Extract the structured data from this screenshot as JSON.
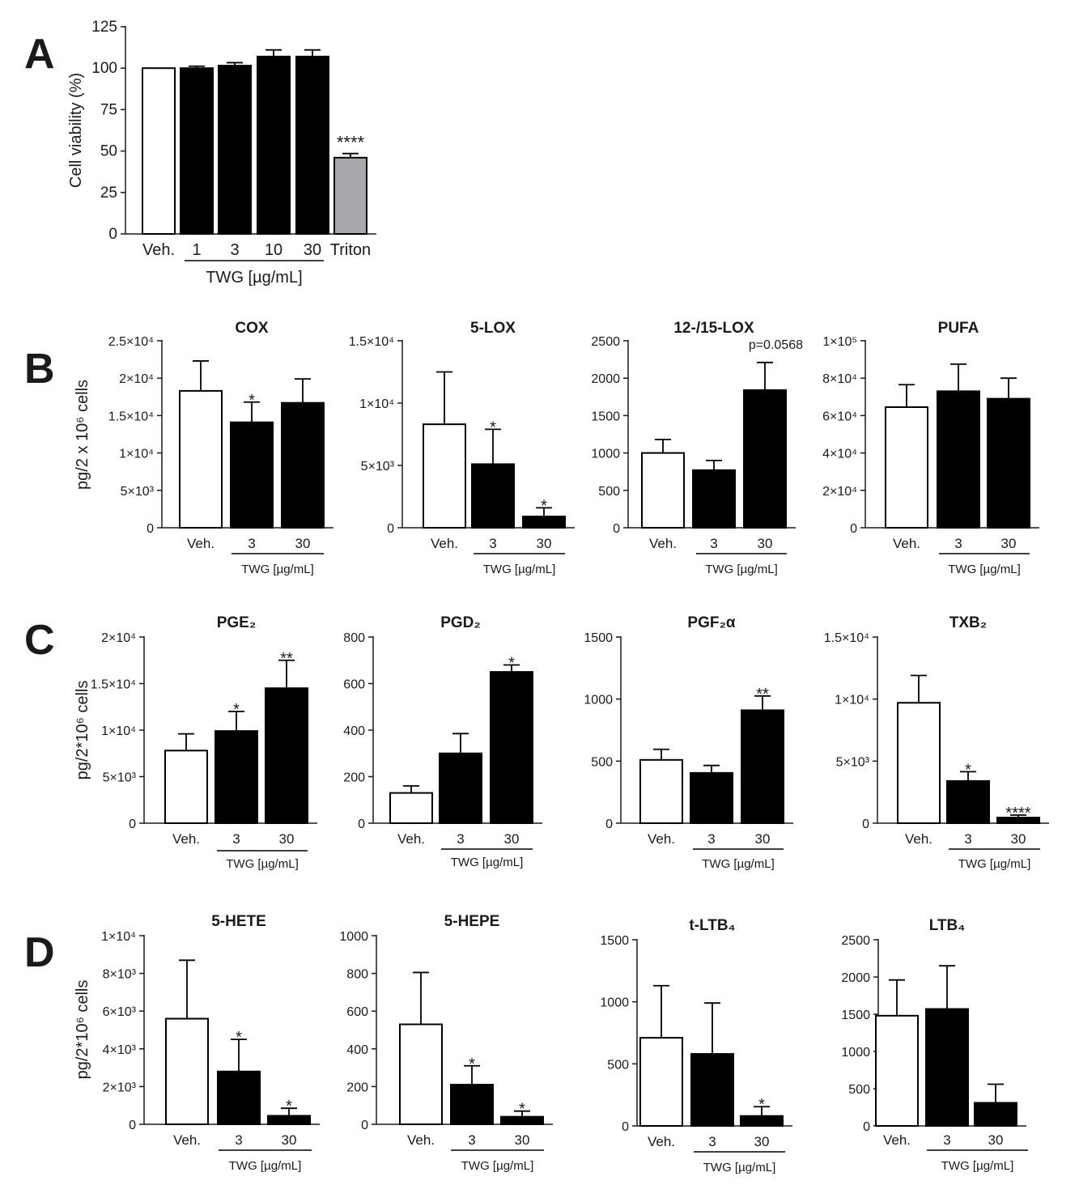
{
  "panels": {
    "A": "A",
    "B": "B",
    "C": "C",
    "D": "D"
  },
  "chart_data": [
    {
      "id": "A",
      "type": "bar",
      "title": "",
      "ylabel": "Cell viability (%)",
      "xlabel": "TWG [µg/mL]",
      "categories": [
        "Veh.",
        "1",
        "3",
        "10",
        "30",
        "Triton"
      ],
      "values": [
        100,
        100,
        101.5,
        107,
        107,
        46
      ],
      "errors": [
        0,
        1.2,
        1.8,
        4,
        4,
        2.5
      ],
      "fills": [
        "white",
        "black",
        "black",
        "black",
        "black",
        "gray"
      ],
      "significance": [
        "",
        "",
        "",
        "",
        "",
        "****"
      ],
      "ylim": [
        0,
        125
      ],
      "yticks": [
        0,
        25,
        50,
        75,
        100,
        125
      ],
      "ytick_labels": [
        "0",
        "25",
        "50",
        "75",
        "100",
        "125"
      ]
    },
    {
      "id": "B1",
      "type": "bar",
      "title": "COX",
      "ylabel": "pg/2 x 10⁶ cells",
      "xlabel": "TWG [µg/mL]",
      "categories": [
        "Veh.",
        "3",
        "30"
      ],
      "values": [
        18300,
        14100,
        16700
      ],
      "errors": [
        4000,
        2700,
        3200
      ],
      "fills": [
        "white",
        "black",
        "black"
      ],
      "significance": [
        "",
        "*",
        ""
      ],
      "ylim": [
        0,
        25000
      ],
      "yticks": [
        0,
        5000,
        10000,
        15000,
        20000,
        25000
      ],
      "ytick_labels": [
        "0",
        "5×10³",
        "1×10⁴",
        "1.5×10⁴",
        "2×10⁴",
        "2.5×10⁴"
      ]
    },
    {
      "id": "B2",
      "type": "bar",
      "title": "5-LOX",
      "xlabel": "TWG [µg/mL]",
      "categories": [
        "Veh.",
        "3",
        "30"
      ],
      "values": [
        8300,
        5100,
        900
      ],
      "errors": [
        4200,
        2800,
        700
      ],
      "fills": [
        "white",
        "black",
        "black"
      ],
      "significance": [
        "",
        "*",
        "*"
      ],
      "ylim": [
        0,
        15000
      ],
      "yticks": [
        0,
        5000,
        10000,
        15000
      ],
      "ytick_labels": [
        "0",
        "5×10³",
        "1×10⁴",
        "1.5×10⁴"
      ]
    },
    {
      "id": "B3",
      "type": "bar",
      "title": "12-/15-LOX",
      "xlabel": "TWG [µg/mL]",
      "categories": [
        "Veh.",
        "3",
        "30"
      ],
      "values": [
        1000,
        770,
        1840
      ],
      "errors": [
        180,
        130,
        370
      ],
      "fills": [
        "white",
        "black",
        "black"
      ],
      "significance": [
        "",
        "",
        ""
      ],
      "annotation": "p=0.0568",
      "ylim": [
        0,
        2500
      ],
      "yticks": [
        0,
        500,
        1000,
        1500,
        2000,
        2500
      ],
      "ytick_labels": [
        "0",
        "500",
        "1000",
        "1500",
        "2000",
        "2500"
      ]
    },
    {
      "id": "B4",
      "type": "bar",
      "title": "PUFA",
      "xlabel": "TWG [µg/mL]",
      "categories": [
        "Veh.",
        "3",
        "30"
      ],
      "values": [
        64500,
        73000,
        69000
      ],
      "errors": [
        12000,
        14500,
        11000
      ],
      "fills": [
        "white",
        "black",
        "black"
      ],
      "significance": [
        "",
        "",
        ""
      ],
      "ylim": [
        0,
        100000
      ],
      "yticks": [
        0,
        20000,
        40000,
        60000,
        80000,
        100000
      ],
      "ytick_labels": [
        "0",
        "2×10⁴",
        "4×10⁴",
        "6×10⁴",
        "8×10⁴",
        "1×10⁵"
      ]
    },
    {
      "id": "C1",
      "type": "bar",
      "title": "PGE₂",
      "ylabel": "pg/2*10⁶ cells",
      "xlabel": "TWG [µg/mL]",
      "categories": [
        "Veh.",
        "3",
        "30"
      ],
      "values": [
        7800,
        9900,
        14500
      ],
      "errors": [
        1800,
        2100,
        3000
      ],
      "fills": [
        "white",
        "black",
        "black"
      ],
      "significance": [
        "",
        "*",
        "**"
      ],
      "ylim": [
        0,
        20000
      ],
      "yticks": [
        0,
        5000,
        10000,
        15000,
        20000
      ],
      "ytick_labels": [
        "0",
        "5×10³",
        "1×10⁴",
        "1.5×10⁴",
        "2×10⁴"
      ]
    },
    {
      "id": "C2",
      "type": "bar",
      "title": "PGD₂",
      "xlabel": "TWG [µg/mL]",
      "categories": [
        "Veh.",
        "3",
        "30"
      ],
      "values": [
        130,
        300,
        650
      ],
      "errors": [
        30,
        85,
        30
      ],
      "fills": [
        "white",
        "black",
        "black"
      ],
      "significance": [
        "",
        "",
        "*"
      ],
      "ylim": [
        0,
        800
      ],
      "yticks": [
        0,
        200,
        400,
        600,
        800
      ],
      "ytick_labels": [
        "0",
        "200",
        "400",
        "600",
        "800"
      ]
    },
    {
      "id": "C3",
      "type": "bar",
      "title": "PGF₂α",
      "xlabel": "TWG [µg/mL]",
      "categories": [
        "Veh.",
        "3",
        "30"
      ],
      "values": [
        510,
        405,
        910
      ],
      "errors": [
        85,
        60,
        115
      ],
      "fills": [
        "white",
        "black",
        "black"
      ],
      "significance": [
        "",
        "",
        "**"
      ],
      "ylim": [
        0,
        1500
      ],
      "yticks": [
        0,
        500,
        1000,
        1500
      ],
      "ytick_labels": [
        "0",
        "500",
        "1000",
        "1500"
      ]
    },
    {
      "id": "C4",
      "type": "bar",
      "title": "TXB₂",
      "xlabel": "TWG [µg/mL]",
      "categories": [
        "Veh.",
        "3",
        "30"
      ],
      "values": [
        9700,
        3400,
        450
      ],
      "errors": [
        2200,
        750,
        200
      ],
      "fills": [
        "white",
        "black",
        "black"
      ],
      "significance": [
        "",
        "*",
        "****"
      ],
      "ylim": [
        0,
        15000
      ],
      "yticks": [
        0,
        5000,
        10000,
        15000
      ],
      "ytick_labels": [
        "0",
        "5×10³",
        "1×10⁴",
        "1.5×10⁴"
      ]
    },
    {
      "id": "D1",
      "type": "bar",
      "title": "5-HETE",
      "ylabel": "pg/2*10⁶ cells",
      "xlabel": "TWG [µg/mL]",
      "categories": [
        "Veh.",
        "3",
        "30"
      ],
      "values": [
        5600,
        2800,
        450
      ],
      "errors": [
        3100,
        1700,
        400
      ],
      "fills": [
        "white",
        "black",
        "black"
      ],
      "significance": [
        "",
        "*",
        "*"
      ],
      "ylim": [
        0,
        10000
      ],
      "yticks": [
        0,
        2000,
        4000,
        6000,
        8000,
        10000
      ],
      "ytick_labels": [
        "0",
        "2×10³",
        "4×10³",
        "6×10³",
        "8×10³",
        "1×10⁴"
      ]
    },
    {
      "id": "D2",
      "type": "bar",
      "title": "5-HEPE",
      "xlabel": "TWG [µg/mL]",
      "categories": [
        "Veh.",
        "3",
        "30"
      ],
      "values": [
        530,
        210,
        40
      ],
      "errors": [
        275,
        100,
        30
      ],
      "fills": [
        "white",
        "black",
        "black"
      ],
      "significance": [
        "",
        "*",
        "*"
      ],
      "ylim": [
        0,
        1000
      ],
      "yticks": [
        0,
        200,
        400,
        600,
        800,
        1000
      ],
      "ytick_labels": [
        "0",
        "200",
        "400",
        "600",
        "800",
        "1000"
      ]
    },
    {
      "id": "D3",
      "type": "bar",
      "title": "t-LTB₄",
      "xlabel": "TWG [µg/mL]",
      "categories": [
        "Veh.",
        "3",
        "30"
      ],
      "values": [
        710,
        580,
        80
      ],
      "errors": [
        420,
        410,
        75
      ],
      "fills": [
        "white",
        "black",
        "black"
      ],
      "significance": [
        "",
        "",
        "*"
      ],
      "ylim": [
        0,
        1500
      ],
      "yticks": [
        0,
        500,
        1000,
        1500
      ],
      "ytick_labels": [
        "0",
        "500",
        "1000",
        "1500"
      ]
    },
    {
      "id": "D4",
      "type": "bar",
      "title": "LTB₄",
      "xlabel": "TWG [µg/mL]",
      "categories": [
        "Veh.",
        "3",
        "30"
      ],
      "values": [
        1480,
        1570,
        310
      ],
      "errors": [
        480,
        580,
        250
      ],
      "fills": [
        "white",
        "black",
        "black"
      ],
      "significance": [
        "",
        "",
        ""
      ],
      "ylim": [
        0,
        2500
      ],
      "yticks": [
        0,
        500,
        1000,
        1500,
        2000,
        2500
      ],
      "ytick_labels": [
        "0",
        "500",
        "1000",
        "1500",
        "2000",
        "2500"
      ]
    }
  ]
}
